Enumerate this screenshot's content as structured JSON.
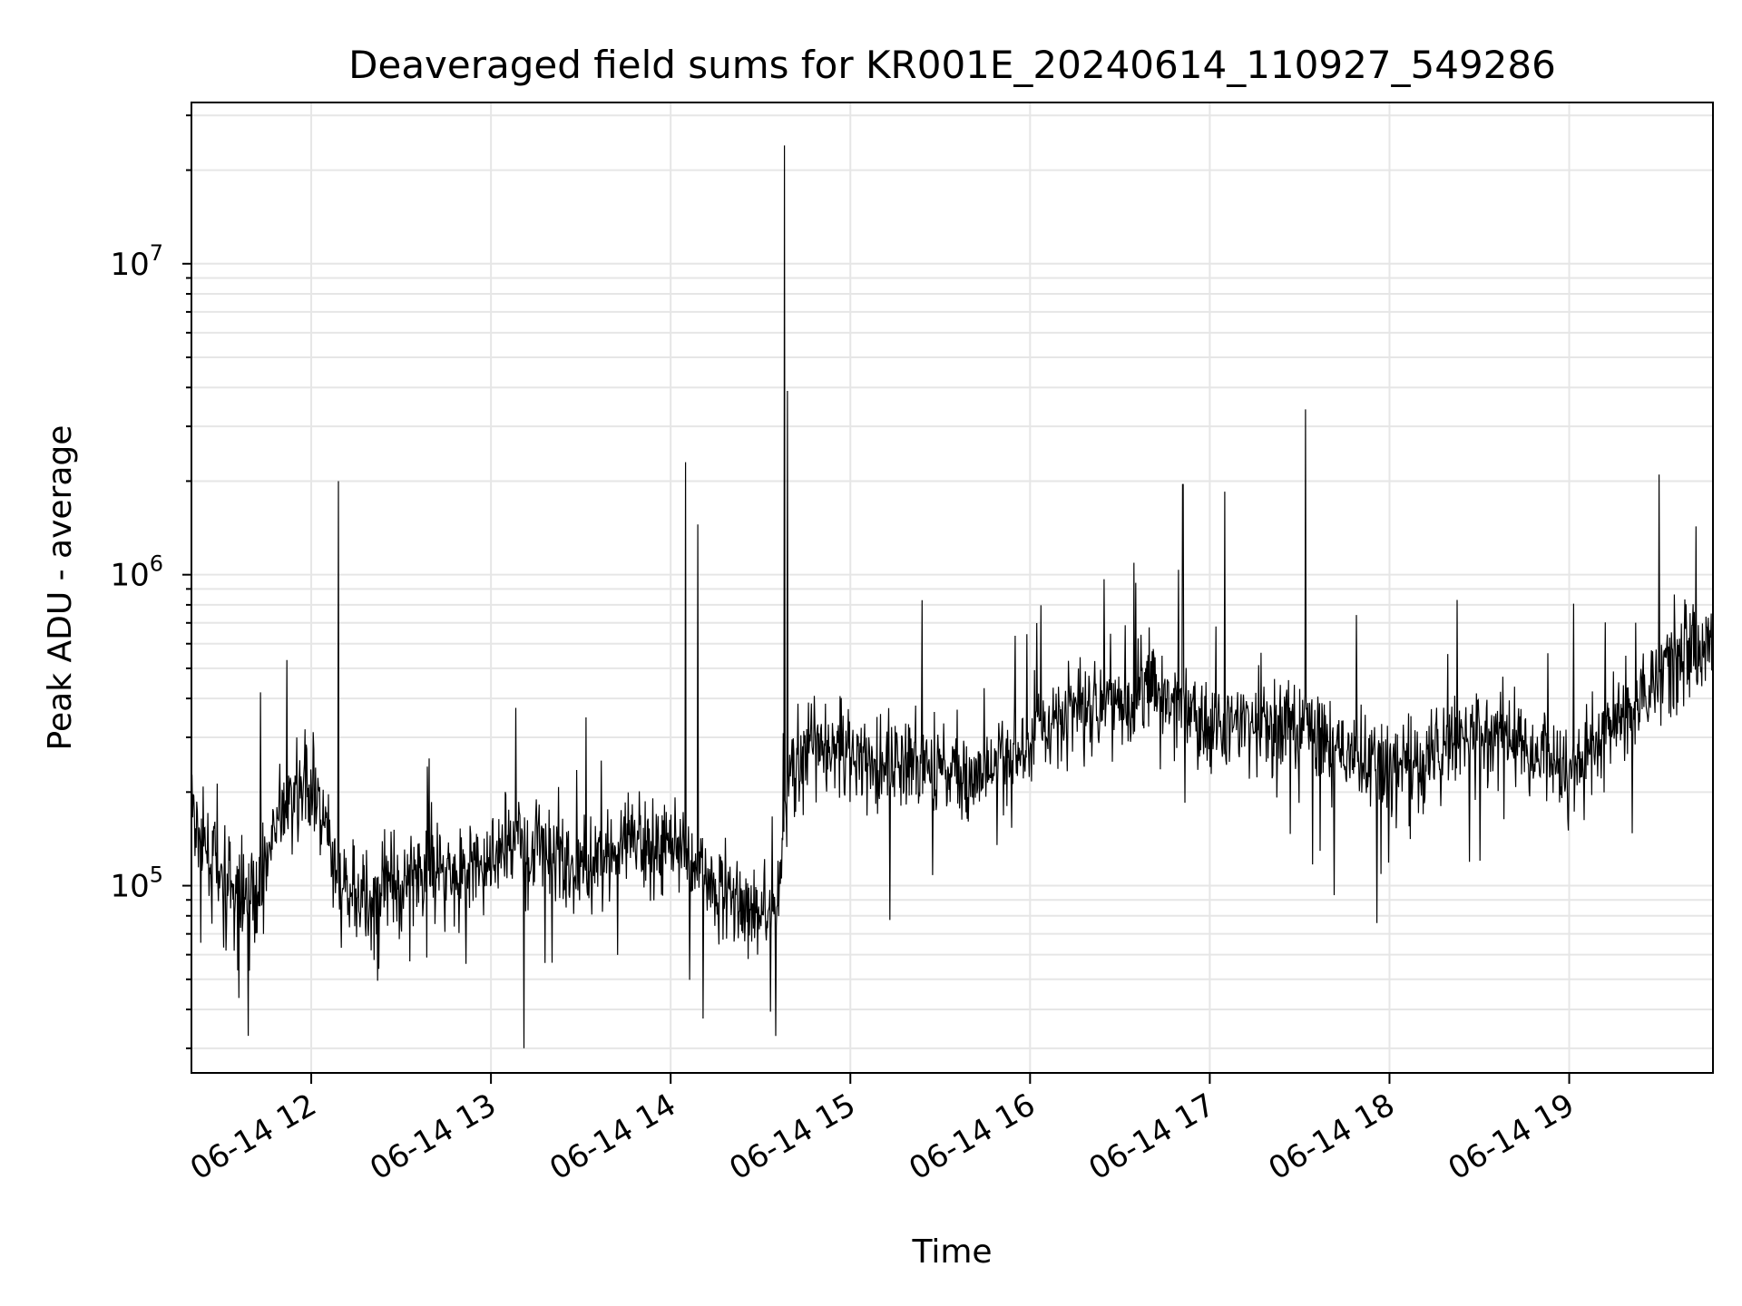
{
  "chart_data": {
    "type": "line",
    "title": "Deaveraged field sums for KR001E_20240614_110927_549286",
    "xlabel": "Time",
    "ylabel": "Peak ADU - average",
    "yscale": "log",
    "xlim": [
      "2024-06-14T11:20",
      "2024-06-14T19:48"
    ],
    "ylim": [
      25000,
      33000000
    ],
    "grid": true,
    "line_color": "#000000",
    "x_ticks": [
      {
        "value": "2024-06-14T12:00",
        "label": "06-14 12"
      },
      {
        "value": "2024-06-14T13:00",
        "label": "06-14 13"
      },
      {
        "value": "2024-06-14T14:00",
        "label": "06-14 14"
      },
      {
        "value": "2024-06-14T15:00",
        "label": "06-14 15"
      },
      {
        "value": "2024-06-14T16:00",
        "label": "06-14 16"
      },
      {
        "value": "2024-06-14T17:00",
        "label": "06-14 17"
      },
      {
        "value": "2024-06-14T18:00",
        "label": "06-14 18"
      },
      {
        "value": "2024-06-14T19:00",
        "label": "06-14 19"
      }
    ],
    "y_ticks": [
      {
        "value": 100000,
        "base": "10",
        "exp": "5"
      },
      {
        "value": 1000000,
        "base": "10",
        "exp": "6"
      },
      {
        "value": 10000000,
        "base": "10",
        "exp": "7"
      }
    ],
    "series": [
      {
        "x": [
          "2024-06-14T11:20",
          "2024-06-14T11:30",
          "2024-06-14T11:40",
          "2024-06-14T11:50",
          "2024-06-14T12:00",
          "2024-06-14T12:10",
          "2024-06-14T12:20",
          "2024-06-14T12:30",
          "2024-06-14T12:40",
          "2024-06-14T12:50",
          "2024-06-14T13:00",
          "2024-06-14T13:10",
          "2024-06-14T13:20",
          "2024-06-14T13:30",
          "2024-06-14T13:40",
          "2024-06-14T13:50",
          "2024-06-14T14:00",
          "2024-06-14T14:10",
          "2024-06-14T14:20",
          "2024-06-14T14:30",
          "2024-06-14T14:35",
          "2024-06-14T14:40",
          "2024-06-14T14:50",
          "2024-06-14T15:00",
          "2024-06-14T15:10",
          "2024-06-14T15:20",
          "2024-06-14T15:30",
          "2024-06-14T15:40",
          "2024-06-14T15:50",
          "2024-06-14T16:00",
          "2024-06-14T16:10",
          "2024-06-14T16:20",
          "2024-06-14T16:30",
          "2024-06-14T16:40",
          "2024-06-14T16:50",
          "2024-06-14T17:00",
          "2024-06-14T17:10",
          "2024-06-14T17:20",
          "2024-06-14T17:30",
          "2024-06-14T17:40",
          "2024-06-14T17:50",
          "2024-06-14T18:00",
          "2024-06-14T18:10",
          "2024-06-14T18:20",
          "2024-06-14T18:30",
          "2024-06-14T18:40",
          "2024-06-14T18:50",
          "2024-06-14T19:00",
          "2024-06-14T19:10",
          "2024-06-14T19:20",
          "2024-06-14T19:30",
          "2024-06-14T19:40",
          "2024-06-14T19:48"
        ],
        "y": [
          170000,
          100000,
          90000,
          170000,
          220000,
          95000,
          90000,
          100000,
          120000,
          110000,
          120000,
          140000,
          130000,
          115000,
          130000,
          135000,
          140000,
          115000,
          90000,
          85000,
          80000,
          240000,
          280000,
          280000,
          250000,
          240000,
          240000,
          220000,
          240000,
          290000,
          360000,
          390000,
          410000,
          410000,
          380000,
          330000,
          330000,
          320000,
          330000,
          290000,
          250000,
          230000,
          240000,
          280000,
          300000,
          300000,
          260000,
          250000,
          280000,
          380000,
          480000,
          580000,
          600000
        ]
      }
    ],
    "spikes": [
      {
        "x": "2024-06-14T12:09",
        "y": 2000000
      },
      {
        "x": "2024-06-14T13:11",
        "y": 30000
      },
      {
        "x": "2024-06-14T14:05",
        "y": 2300000
      },
      {
        "x": "2024-06-14T14:09",
        "y": 1450000
      },
      {
        "x": "2024-06-14T14:38",
        "y": 24000000
      },
      {
        "x": "2024-06-14T14:39",
        "y": 3900000
      },
      {
        "x": "2024-06-14T16:51",
        "y": 1950000
      },
      {
        "x": "2024-06-14T17:05",
        "y": 1850000
      },
      {
        "x": "2024-06-14T17:32",
        "y": 3400000
      },
      {
        "x": "2024-06-14T19:30",
        "y": 2100000
      }
    ]
  }
}
